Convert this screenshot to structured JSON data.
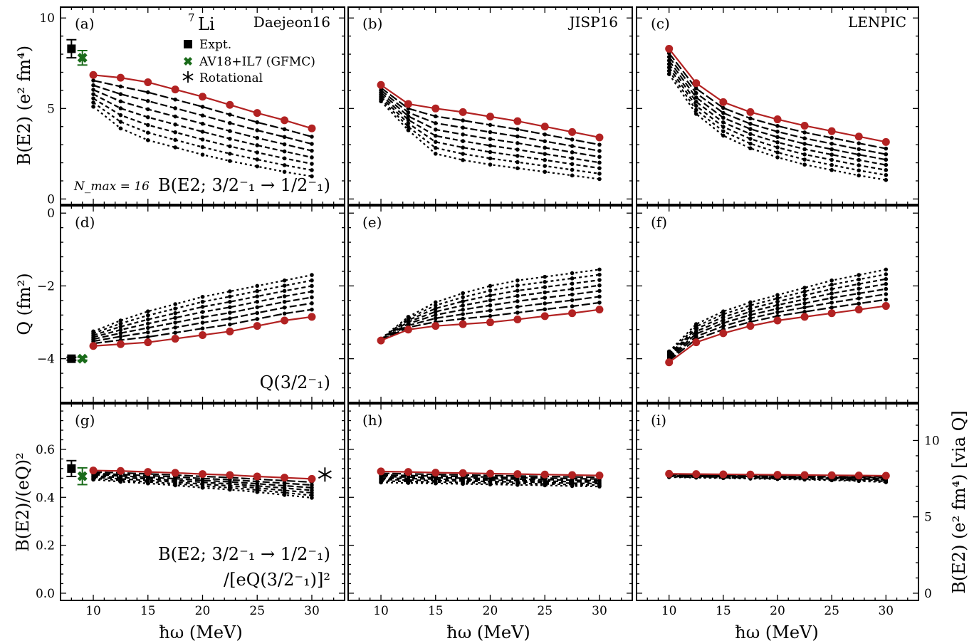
{
  "figure": {
    "nucleus": "Li",
    "nucleus_mass": "7",
    "xlabel": "ħω (MeV)",
    "row_ylabels": [
      "B(E2) (e² fm⁴)",
      "Q (fm²)",
      "B(E2)/(eQ)²"
    ],
    "right_ylabel": "B(E2) (e² fm⁴)  [via Q]",
    "interactions": [
      "Daejeon16",
      "JISP16",
      "LENPIC"
    ],
    "panel_letters": [
      "(a)",
      "(b)",
      "(c)",
      "(d)",
      "(e)",
      "(f)",
      "(g)",
      "(h)",
      "(i)"
    ],
    "nmax_label": "N_max = 16",
    "row_annotations": {
      "be2": "B(E2; 3/2⁻₁ → 1/2⁻₁)",
      "q": "Q(3/2⁻₁)",
      "ratio_line1": "B(E2; 3/2⁻₁ → 1/2⁻₁)",
      "ratio_line2": "/[eQ(3/2⁻₁)]²"
    },
    "legend": [
      {
        "label": "Expt.",
        "marker": "square",
        "color": "#000000"
      },
      {
        "label": "AV18+IL7 (GFMC)",
        "marker": "x-filled",
        "color": "#1a6b1a"
      },
      {
        "label": "Rotational",
        "marker": "asterisk",
        "color": "#000000"
      }
    ],
    "colors": {
      "highest_nmax": "#b22222",
      "lower_nmax": "#000000",
      "gfmc": "#1a6b1a"
    }
  },
  "chart_data": {
    "type": "line",
    "x": [
      10,
      12.5,
      15,
      17.5,
      20,
      22.5,
      25,
      27.5,
      30
    ],
    "xlim": [
      7,
      33
    ],
    "xticks": [
      10,
      15,
      20,
      25,
      30
    ],
    "rows": [
      {
        "name": "be2",
        "ylim": [
          -0.3,
          10.6
        ],
        "yticks": [
          0,
          5,
          10
        ]
      },
      {
        "name": "q",
        "ylim": [
          -5.2,
          0.2
        ],
        "yticks": [
          -4,
          -2,
          0
        ]
      },
      {
        "name": "ratio",
        "ylim": [
          -0.03,
          0.79
        ],
        "yticks": [
          0.0,
          0.2,
          0.4,
          0.6
        ],
        "right_ylim": [
          -0.47,
          12.4
        ],
        "right_yticks": [
          0,
          5,
          10
        ]
      }
    ],
    "experiment": {
      "be2": {
        "x": 8,
        "y": 8.3,
        "err": 0.5
      },
      "q": {
        "x": 8,
        "y": -4.0,
        "err": 0.04
      },
      "ratio": {
        "x": 8,
        "y": 0.52,
        "err": 0.033
      }
    },
    "gfmc": {
      "be2": {
        "x": 9,
        "y": 7.8,
        "err": 0.4
      },
      "q": {
        "x": 9,
        "y": -4.0,
        "err": 0.04
      },
      "ratio": {
        "x": 9,
        "y": 0.488,
        "err": 0.035
      }
    },
    "rotational": {
      "x": 31.2,
      "y": 0.495
    },
    "panels": [
      {
        "id": "a",
        "row": "be2",
        "interaction": "Daejeon16",
        "top": [
          6.85,
          6.7,
          6.45,
          6.05,
          5.65,
          5.2,
          4.75,
          4.35,
          3.9
        ],
        "bottom": [
          5.1,
          3.9,
          3.25,
          2.85,
          2.45,
          2.1,
          1.8,
          1.5,
          1.25
        ]
      },
      {
        "id": "b",
        "row": "be2",
        "interaction": "JISP16",
        "top": [
          6.3,
          5.25,
          5.0,
          4.8,
          4.55,
          4.3,
          4.0,
          3.7,
          3.4
        ],
        "bottom": [
          5.4,
          3.8,
          2.5,
          2.15,
          1.9,
          1.7,
          1.5,
          1.3,
          1.1
        ]
      },
      {
        "id": "c",
        "row": "be2",
        "interaction": "LENPIC",
        "top": [
          8.3,
          6.4,
          5.35,
          4.8,
          4.4,
          4.05,
          3.75,
          3.45,
          3.15
        ],
        "bottom": [
          6.9,
          4.7,
          3.5,
          2.8,
          2.3,
          1.9,
          1.6,
          1.3,
          1.05
        ]
      },
      {
        "id": "d",
        "row": "q",
        "interaction": "Daejeon16",
        "top": [
          -3.65,
          -3.6,
          -3.55,
          -3.45,
          -3.35,
          -3.25,
          -3.1,
          -2.95,
          -2.85
        ],
        "bottom": [
          -3.25,
          -2.95,
          -2.7,
          -2.5,
          -2.3,
          -2.15,
          -2.0,
          -1.85,
          -1.7
        ]
      },
      {
        "id": "e",
        "row": "q",
        "interaction": "JISP16",
        "top": [
          -3.5,
          -3.2,
          -3.1,
          -3.05,
          -3.0,
          -2.92,
          -2.83,
          -2.75,
          -2.65
        ],
        "bottom": [
          -3.45,
          -2.85,
          -2.45,
          -2.2,
          -2.0,
          -1.85,
          -1.75,
          -1.65,
          -1.55
        ]
      },
      {
        "id": "f",
        "row": "q",
        "interaction": "LENPIC",
        "top": [
          -4.1,
          -3.55,
          -3.3,
          -3.1,
          -2.95,
          -2.85,
          -2.75,
          -2.65,
          -2.55
        ],
        "bottom": [
          -3.8,
          -3.05,
          -2.7,
          -2.45,
          -2.25,
          -2.05,
          -1.85,
          -1.7,
          -1.55
        ]
      },
      {
        "id": "g",
        "row": "ratio",
        "interaction": "Daejeon16",
        "top": [
          0.512,
          0.51,
          0.506,
          0.502,
          0.497,
          0.493,
          0.487,
          0.482,
          0.477
        ],
        "bottom": [
          0.474,
          0.465,
          0.458,
          0.45,
          0.44,
          0.432,
          0.422,
          0.41,
          0.398
        ]
      },
      {
        "id": "h",
        "row": "ratio",
        "interaction": "JISP16",
        "top": [
          0.508,
          0.506,
          0.503,
          0.501,
          0.499,
          0.497,
          0.495,
          0.493,
          0.491
        ],
        "bottom": [
          0.462,
          0.46,
          0.458,
          0.456,
          0.454,
          0.452,
          0.45,
          0.447,
          0.445
        ]
      },
      {
        "id": "i",
        "row": "ratio",
        "interaction": "LENPIC",
        "top": [
          0.498,
          0.497,
          0.496,
          0.495,
          0.494,
          0.493,
          0.492,
          0.491,
          0.49
        ],
        "bottom": [
          0.484,
          0.482,
          0.48,
          0.478,
          0.476,
          0.474,
          0.471,
          0.468,
          0.463
        ]
      }
    ]
  }
}
